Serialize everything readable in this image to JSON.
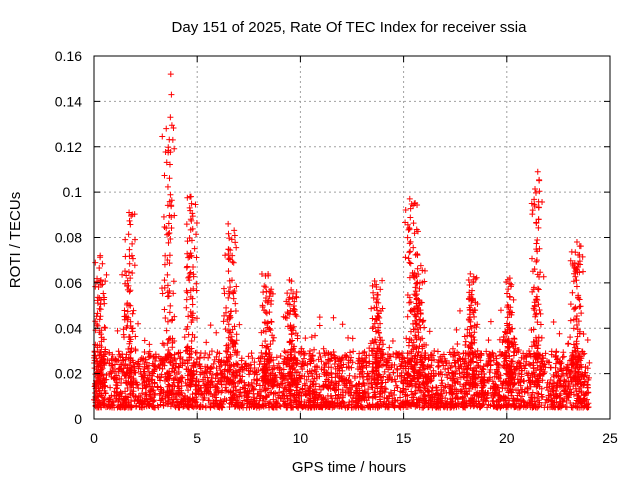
{
  "chart_data": {
    "type": "scatter",
    "title": "Day 151 of 2025, Rate Of TEC Index for receiver ssia",
    "xlabel": "GPS time / hours",
    "ylabel": "ROTI / TECUs",
    "xlim": [
      0,
      25
    ],
    "ylim": [
      0,
      0.16
    ],
    "x_ticks": [
      0,
      5,
      10,
      15,
      20,
      25
    ],
    "x_tick_labels": [
      "0",
      "5",
      "10",
      "15",
      "20",
      "25"
    ],
    "y_ticks": [
      0,
      0.02,
      0.04,
      0.06,
      0.08,
      0.1,
      0.12,
      0.14,
      0.16
    ],
    "y_tick_labels": [
      "0",
      "0.02",
      "0.04",
      "0.06",
      "0.08",
      "0.1",
      "0.12",
      "0.14",
      "0.16"
    ],
    "grid": true,
    "marker": "+",
    "marker_color": "#ff0000",
    "x_range_hours": [
      0,
      24
    ],
    "baseline_band": [
      0.005,
      0.03
    ],
    "notable_points": [
      {
        "x": 3.72,
        "y": 0.152
      },
      {
        "x": 3.75,
        "y": 0.143
      },
      {
        "x": 3.7,
        "y": 0.133
      },
      {
        "x": 3.5,
        "y": 0.128
      },
      {
        "x": 4.7,
        "y": 0.098
      },
      {
        "x": 15.3,
        "y": 0.097
      },
      {
        "x": 21.5,
        "y": 0.109
      },
      {
        "x": 1.7,
        "y": 0.091
      },
      {
        "x": 6.5,
        "y": 0.086
      },
      {
        "x": 23.4,
        "y": 0.078
      },
      {
        "x": 0.3,
        "y": 0.072
      }
    ],
    "peak_clusters": [
      {
        "center": 0.3,
        "max": 0.072
      },
      {
        "center": 1.7,
        "max": 0.091
      },
      {
        "center": 3.6,
        "max": 0.13
      },
      {
        "center": 4.7,
        "max": 0.098
      },
      {
        "center": 6.6,
        "max": 0.085
      },
      {
        "center": 8.4,
        "max": 0.064
      },
      {
        "center": 9.6,
        "max": 0.065
      },
      {
        "center": 13.7,
        "max": 0.061
      },
      {
        "center": 15.4,
        "max": 0.096
      },
      {
        "center": 15.8,
        "max": 0.068
      },
      {
        "center": 18.3,
        "max": 0.064
      },
      {
        "center": 20.1,
        "max": 0.065
      },
      {
        "center": 21.5,
        "max": 0.108
      },
      {
        "center": 23.4,
        "max": 0.077
      }
    ]
  }
}
